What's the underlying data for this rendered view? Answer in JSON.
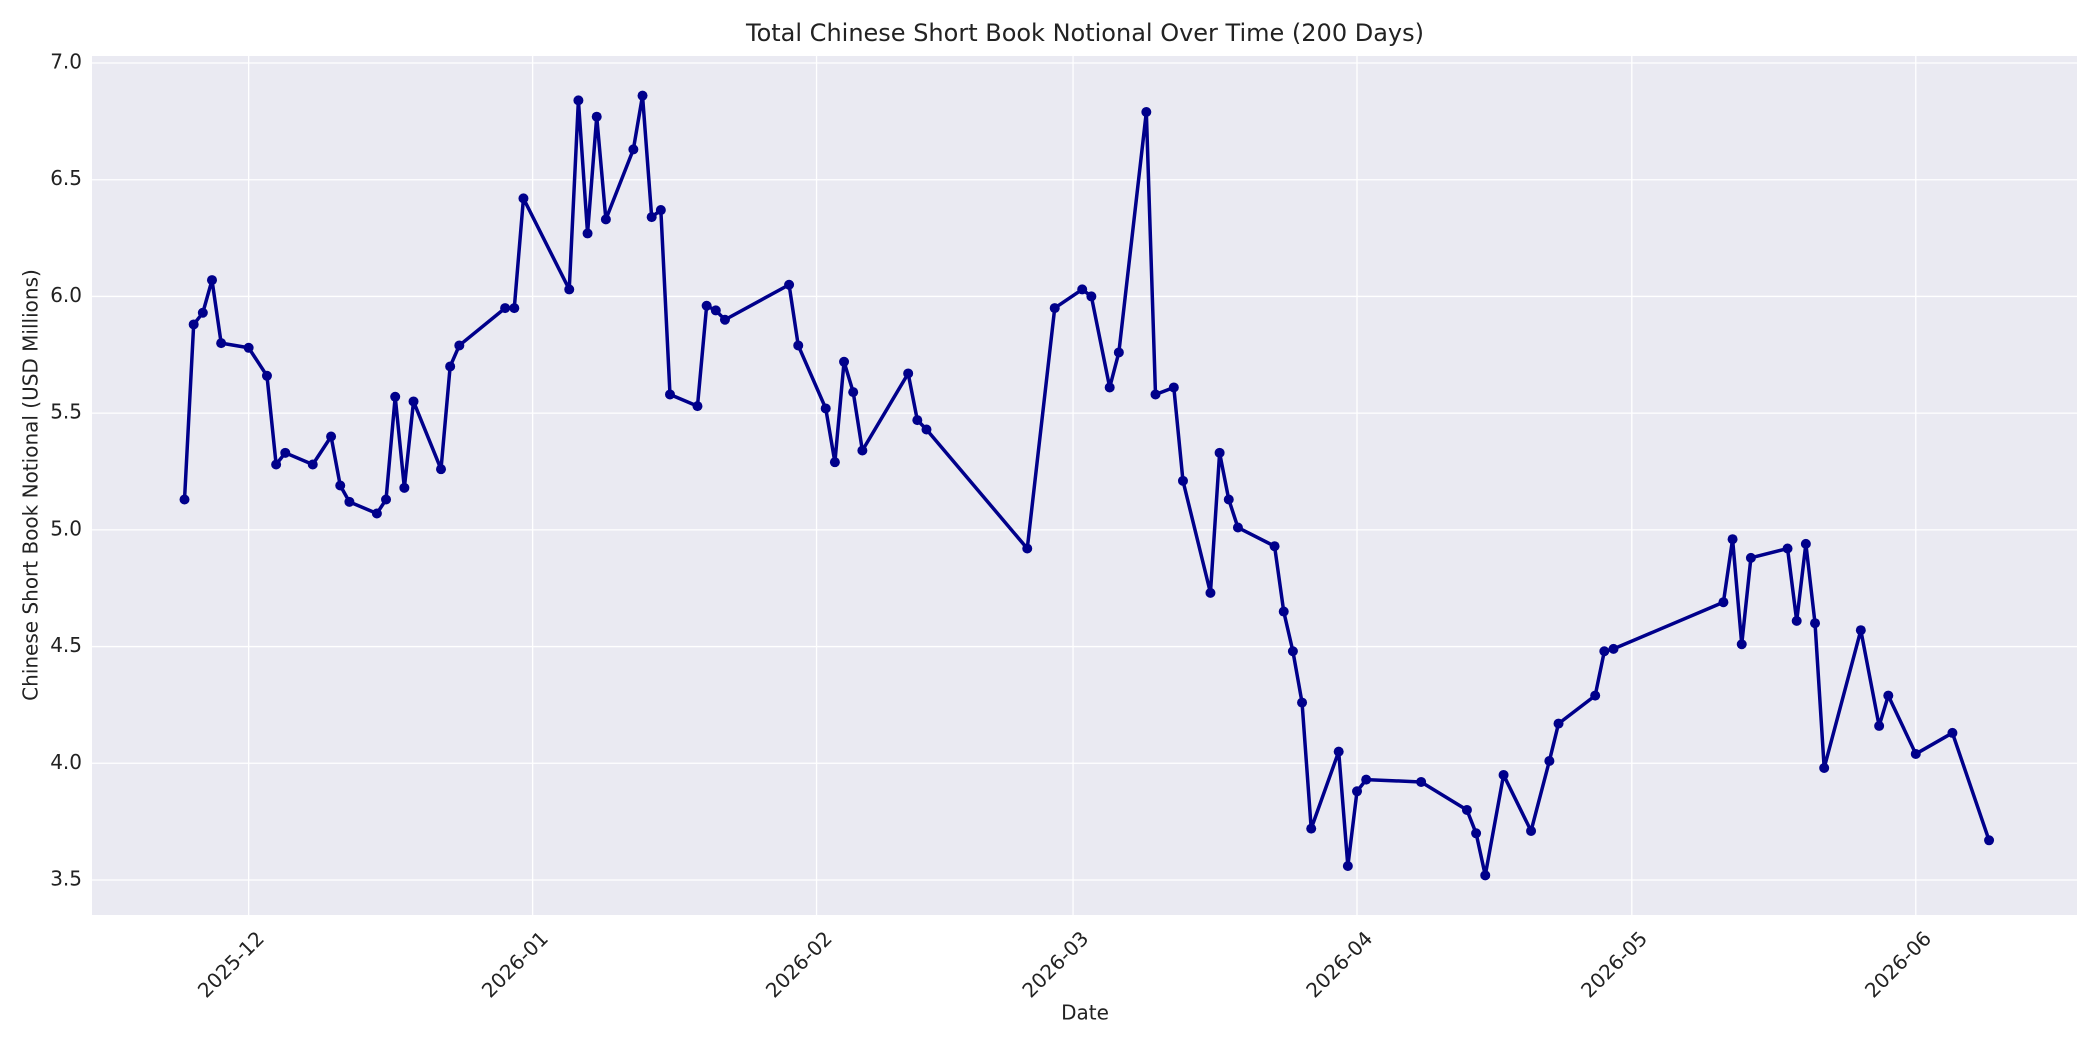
{
  "chart_data": {
    "type": "line",
    "title": "Total Chinese Short Book Notional Over Time (200 Days)",
    "xlabel": "Date",
    "ylabel": "Chinese Short Book Notional (USD Millions)",
    "color": "#00008b",
    "grid": true,
    "x": [
      20416,
      20417,
      20418,
      20419,
      20420,
      20423,
      20425,
      20426,
      20427,
      20430,
      20432,
      20433,
      20434,
      20437,
      20438,
      20439,
      20440,
      20441,
      20444,
      20445,
      20446,
      20451,
      20452,
      20453,
      20458,
      20459,
      20460,
      20461,
      20462,
      20465,
      20466,
      20467,
      20468,
      20469,
      20472,
      20473,
      20474,
      20475,
      20482,
      20483,
      20486,
      20487,
      20488,
      20489,
      20490,
      20495,
      20496,
      20497,
      20508,
      20511,
      20514,
      20515,
      20517,
      20518,
      20521,
      20522,
      20524,
      20525,
      20528,
      20529,
      20530,
      20531,
      20535,
      20536,
      20537,
      20538,
      20539,
      20542,
      20543,
      20544,
      20545,
      20551,
      20556,
      20557,
      20558,
      20560,
      20563,
      20565,
      20566,
      20570,
      20571,
      20572,
      20584,
      20585,
      20586,
      20587,
      20591,
      20592,
      20593,
      20594,
      20595,
      20599,
      20601,
      20602,
      20605,
      20609,
      20613
    ],
    "values": [
      5.13,
      5.88,
      5.93,
      6.07,
      5.8,
      5.78,
      5.66,
      5.28,
      5.33,
      5.28,
      5.4,
      5.19,
      5.12,
      5.07,
      5.13,
      5.57,
      5.18,
      5.55,
      5.26,
      5.7,
      5.79,
      5.95,
      5.95,
      6.42,
      6.03,
      6.84,
      6.27,
      6.77,
      6.33,
      6.63,
      6.86,
      6.34,
      6.37,
      5.58,
      5.53,
      5.96,
      5.94,
      5.9,
      6.05,
      5.79,
      5.52,
      5.29,
      5.72,
      5.59,
      5.34,
      5.67,
      5.47,
      5.43,
      4.92,
      5.95,
      6.03,
      6.0,
      5.61,
      5.76,
      6.79,
      5.58,
      5.61,
      5.21,
      4.73,
      5.33,
      5.13,
      5.01,
      4.93,
      4.65,
      4.48,
      4.26,
      3.72,
      4.05,
      3.56,
      3.88,
      3.93,
      3.92,
      3.8,
      3.7,
      3.52,
      3.95,
      3.71,
      4.01,
      4.17,
      4.29,
      4.48,
      4.49,
      4.69,
      4.96,
      4.51,
      4.88,
      4.92,
      4.61,
      4.94,
      4.6,
      3.98,
      4.57,
      4.16,
      4.29,
      4.04,
      4.13,
      3.67
    ],
    "xlim": [
      20405.9,
      20622.6
    ],
    "ylim": [
      3.35,
      7.03
    ],
    "xticks": [
      {
        "value": 20423,
        "label": "2025-12"
      },
      {
        "value": 20454,
        "label": "2026-01"
      },
      {
        "value": 20485,
        "label": "2026-02"
      },
      {
        "value": 20513,
        "label": "2026-03"
      },
      {
        "value": 20544,
        "label": "2026-04"
      },
      {
        "value": 20574,
        "label": "2026-05"
      },
      {
        "value": 20605,
        "label": "2026-06"
      }
    ],
    "yticks": [
      3.5,
      {
        "value": 4,
        "label": "4.0"
      },
      4.5,
      {
        "value": 5,
        "label": "5.0"
      },
      5.5,
      {
        "value": 6,
        "label": "6.0"
      },
      6.5,
      {
        "value": 7,
        "label": "7.0"
      }
    ]
  }
}
